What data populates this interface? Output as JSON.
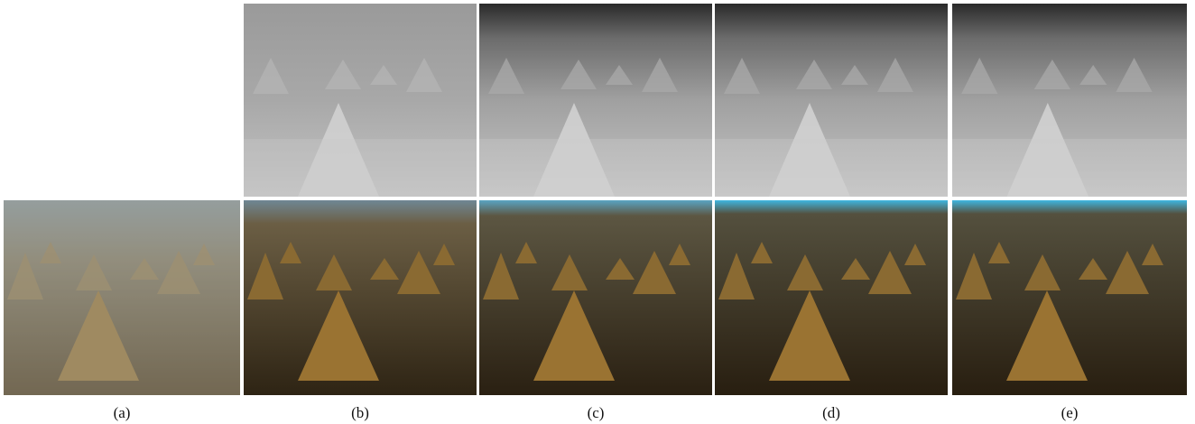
{
  "figure": {
    "captions": {
      "a": "(a)",
      "b": "(b)",
      "c": "(c)",
      "d": "(d)",
      "e": "(e)"
    }
  },
  "panels": {
    "photo_a": {
      "content": "hazy field of straw haystacks",
      "tone": "hazy",
      "accent": "#8a7a55"
    },
    "photo_b": {
      "content": "dehazed field of straw haystacks",
      "tone": "dehazed",
      "accent": "#8a6a2c"
    },
    "photo_c": {
      "content": "dehazed field of straw haystacks",
      "tone": "dehazed",
      "accent": "#8a6a2c"
    },
    "photo_d": {
      "content": "dehazed field of straw haystacks",
      "tone": "dehazed",
      "accent": "#8a6a2c"
    },
    "photo_e": {
      "content": "dehazed field of straw haystacks",
      "tone": "dehazed",
      "accent": "#8a6a2c"
    },
    "tmap_b": {
      "content": "grayscale transmission map",
      "tone": "flat"
    },
    "tmap_c": {
      "content": "grayscale transmission map",
      "tone": "dark-top"
    },
    "tmap_d": {
      "content": "grayscale transmission map",
      "tone": "dark-top"
    },
    "tmap_e": {
      "content": "grayscale transmission map",
      "tone": "dark-top"
    }
  }
}
